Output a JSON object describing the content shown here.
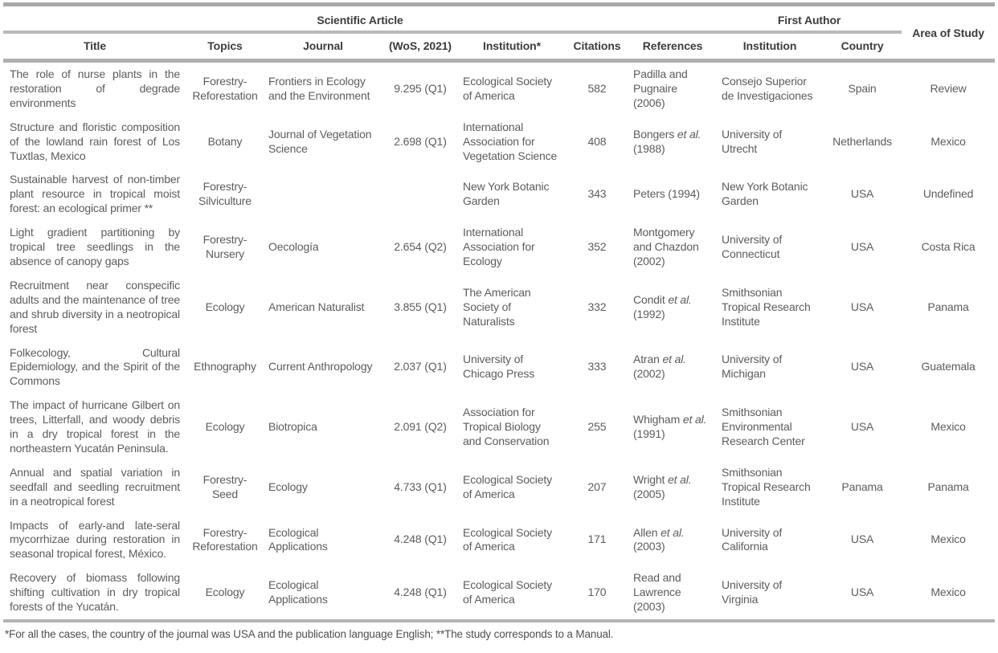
{
  "table": {
    "group_headers": [
      {
        "label": "Scientific Article"
      },
      {
        "label": "First Author"
      }
    ],
    "columns": [
      {
        "key": "title",
        "label": "Title"
      },
      {
        "key": "topics",
        "label": "Topics"
      },
      {
        "key": "journal",
        "label": "Journal"
      },
      {
        "key": "wos",
        "label": "(WoS, 2021)"
      },
      {
        "key": "institution_article",
        "label": "Institution*"
      },
      {
        "key": "citations",
        "label": "Citations"
      },
      {
        "key": "reference",
        "label": "References"
      },
      {
        "key": "institution_author",
        "label": "Institution"
      },
      {
        "key": "country",
        "label": "Country"
      },
      {
        "key": "area",
        "label": "Area of Study"
      }
    ],
    "rows": [
      {
        "title": "The role of nurse plants in the restoration of degrade environments",
        "topics": "Forestry-Reforestation",
        "journal": "Frontiers in Ecology and the Environment",
        "wos": "9.295 (Q1)",
        "institution_article": "Ecological Society of America",
        "citations": "582",
        "reference": "Padilla and Pugnaire (2006)",
        "institution_author": "Consejo Superior de Investigaciones",
        "country": "Spain",
        "area": "Review"
      },
      {
        "title": "Structure and floristic composition of the lowland rain forest of Los Tuxtlas, Mexico",
        "topics": "Botany",
        "journal": "Journal of Vegetation Science",
        "wos": "2.698 (Q1)",
        "institution_article": "International Association for Vegetation Science",
        "citations": "408",
        "reference": "Bongers et al. (1988)",
        "institution_author": "University of Utrecht",
        "country": "Netherlands",
        "area": "Mexico"
      },
      {
        "title": "Sustainable harvest of non-timber plant resource in tropical moist forest: an ecological primer **",
        "topics": "Forestry-Silviculture",
        "journal": "",
        "wos": "",
        "institution_article": "New York Botanic Garden",
        "citations": "343",
        "reference": "Peters (1994)",
        "institution_author": "New York Botanic Garden",
        "country": "USA",
        "area": "Undefined"
      },
      {
        "title": "Light gradient partitioning by tropical tree seedlings in the absence of canopy gaps",
        "topics": "Forestry-Nursery",
        "journal": "Oecología",
        "wos": "2.654 (Q2)",
        "institution_article": "International Association for Ecology",
        "citations": "352",
        "reference": "Montgomery and Chazdon (2002)",
        "institution_author": "University of Connecticut",
        "country": "USA",
        "area": "Costa Rica"
      },
      {
        "title": "Recruitment near conspecific adults and the maintenance of tree and shrub diversity in a neotropical forest",
        "topics": "Ecology",
        "journal": "American Naturalist",
        "wos": "3.855 (Q1)",
        "institution_article": "The American Society of Naturalists",
        "citations": "332",
        "reference": "Condit et al. (1992)",
        "institution_author": "Smithsonian Tropical Research Institute",
        "country": "USA",
        "area": "Panama"
      },
      {
        "title": "Folkecology, Cultural Epidemiology, and the Spirit of the Commons",
        "topics": "Ethnography",
        "journal": "Current Anthropology",
        "wos": "2.037 (Q1)",
        "institution_article": "University of Chicago Press",
        "citations": "333",
        "reference": "Atran et al. (2002)",
        "institution_author": "University of Michigan",
        "country": "USA",
        "area": "Guatemala"
      },
      {
        "title": "The impact of hurricane Gilbert on trees, Litterfall, and woody debris in a dry tropical forest in the northeastern Yucatán Peninsula.",
        "topics": "Ecology",
        "journal": "Biotropica",
        "wos": "2.091 (Q2)",
        "institution_article": "Association for Tropical Biology and Conservation",
        "citations": "255",
        "reference": "Whigham et al. (1991)",
        "institution_author": "Smithsonian Environmental Research Center",
        "country": "USA",
        "area": "Mexico"
      },
      {
        "title": "Annual and spatial variation in seedfall and seedling recruitment in a neotropical forest",
        "topics": "Forestry-Seed",
        "journal": "Ecology",
        "wos": "4.733 (Q1)",
        "institution_article": "Ecological Society of America",
        "citations": "207",
        "reference": "Wright et al. (2005)",
        "institution_author": "Smithsonian Tropical Research Institute",
        "country": "Panama",
        "area": "Panama"
      },
      {
        "title": "Impacts of early-and late-seral mycorrhizae during restoration in seasonal tropical forest, México.",
        "topics": "Forestry-Reforestation",
        "journal": "Ecological Applications",
        "wos": "4.248 (Q1)",
        "institution_article": "Ecological Society of America",
        "citations": "171",
        "reference": "Allen et al. (2003)",
        "institution_author": "University of California",
        "country": "USA",
        "area": "Mexico"
      },
      {
        "title": "Recovery of biomass following shifting cultivation in dry tropical forests of the Yucatán.",
        "topics": "Ecology",
        "journal": "Ecological Applications",
        "wos": "4.248 (Q1)",
        "institution_article": "Ecological Society of America",
        "citations": "170",
        "reference": "Read and Lawrence (2003)",
        "institution_author": "University of Virginia",
        "country": "USA",
        "area": "Mexico"
      }
    ],
    "footnote": "*For all the cases, the country of the journal was USA and the publication language English; **The study corresponds to a Manual.",
    "colors": {
      "rule_line": "#b0b0b0",
      "header_text": "#3c3c3c",
      "body_text": "#5c5c5c"
    }
  }
}
